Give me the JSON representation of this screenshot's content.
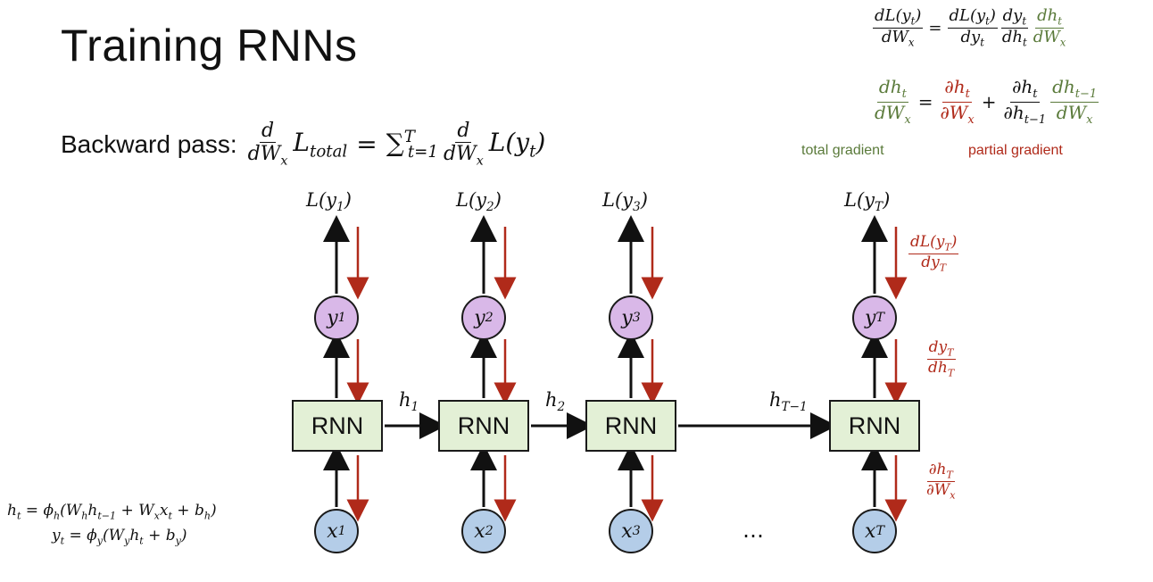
{
  "title": "Training RNNs",
  "backward_pass": {
    "prefix": "Backward pass:",
    "lhs_num": "d",
    "lhs_den": "dW",
    "lhs_den_sub": "x",
    "lhs_L": "L",
    "lhs_L_sub": "total",
    "equals": "=",
    "sum": "∑",
    "sum_sup": "T",
    "sum_sub": "t=1",
    "rhs_num": "d",
    "rhs_den": "dW",
    "rhs_den_sub": "x",
    "rhs_L": "L(y",
    "rhs_L_sub": "t",
    "rhs_close": ")"
  },
  "top_right": {
    "eq1": {
      "lhs_num": "dL(y",
      "lhs_num_sub": "t",
      "lhs_num_close": ")",
      "lhs_den": "dW",
      "lhs_den_sub": "x",
      "f1_num": "dL(y",
      "f1_num_sub": "t",
      "f1_num_close": ")",
      "f1_den": "dy",
      "f1_den_sub": "t",
      "f2_num": "dy",
      "f2_num_sub": "t",
      "f2_den": "dh",
      "f2_den_sub": "t",
      "f3_num": "dh",
      "f3_num_sub": "t",
      "f3_den": "dW",
      "f3_den_sub": "x"
    },
    "eq2": {
      "lhs_num": "dh",
      "lhs_num_sub": "t",
      "lhs_den": "dW",
      "lhs_den_sub": "x",
      "p1_num": "∂h",
      "p1_num_sub": "t",
      "p1_den": "∂W",
      "p1_den_sub": "x",
      "plus": "+",
      "p2_num": "∂h",
      "p2_num_sub": "t",
      "p2_den": "∂h",
      "p2_den_sub": "t−1",
      "p3_num": "dh",
      "p3_num_sub": "t−1",
      "p3_den": "dW",
      "p3_den_sub": "x"
    },
    "total_gradient_label": "total gradient",
    "partial_gradient_label": "partial gradient"
  },
  "columns": [
    {
      "loss": "L(y",
      "loss_sub": "1",
      "y": "y",
      "y_sub": "1",
      "rnn": "RNN",
      "x": "x",
      "x_sub": "1"
    },
    {
      "loss": "L(y",
      "loss_sub": "2",
      "y": "y",
      "y_sub": "2",
      "rnn": "RNN",
      "x": "x",
      "x_sub": "2"
    },
    {
      "loss": "L(y",
      "loss_sub": "3",
      "y": "y",
      "y_sub": "3",
      "rnn": "RNN",
      "x": "x",
      "x_sub": "3"
    },
    {
      "loss": "L(y",
      "loss_sub": "T",
      "y": "y",
      "y_sub": "T",
      "rnn": "RNN",
      "x": "x",
      "x_sub": "T"
    }
  ],
  "loss_close": ")",
  "hidden": [
    {
      "h": "h",
      "sub": "1"
    },
    {
      "h": "h",
      "sub": "2"
    },
    {
      "h": "h",
      "sub": "T−1"
    }
  ],
  "ellipsis": "…",
  "side_grads": {
    "g1_num": "dL(y",
    "g1_num_sub": "T",
    "g1_num_close": ")",
    "g1_den": "dy",
    "g1_den_sub": "T",
    "g2_num": "dy",
    "g2_num_sub": "T",
    "g2_den": "dh",
    "g2_den_sub": "T",
    "g3_num": "∂h",
    "g3_num_sub": "T",
    "g3_den": "∂W",
    "g3_den_sub": "x"
  },
  "equations": {
    "eq_h": "h",
    "eq_h_sub": "t",
    "eq_h_rest": " = ϕ",
    "eq_h_phi_sub": "h",
    "eq_h_body": "(W",
    "eq_h_w_sub": "h",
    "eq_h_h": "h",
    "eq_h_h_sub": "t−1",
    "eq_h_plus": " + W",
    "eq_h_wx_sub": "x",
    "eq_h_x": "x",
    "eq_h_x_sub": "t",
    "eq_h_b": " + b",
    "eq_h_b_sub": "h",
    "eq_h_close": ")",
    "eq_y": "y",
    "eq_y_sub": "t",
    "eq_y_rest": " = ϕ",
    "eq_y_phi_sub": "y",
    "eq_y_body": "(W",
    "eq_y_w_sub": "y",
    "eq_y_h": "h",
    "eq_y_h_sub": "t",
    "eq_y_b": " + b",
    "eq_y_b_sub": "y",
    "eq_y_close": ")"
  },
  "colors": {
    "rnn_fill": "#e3f0d6",
    "y_fill": "#d9b8e8",
    "x_fill": "#b4cde8",
    "gradient_red": "#b02a1a",
    "total_green": "#5a7a3a"
  }
}
